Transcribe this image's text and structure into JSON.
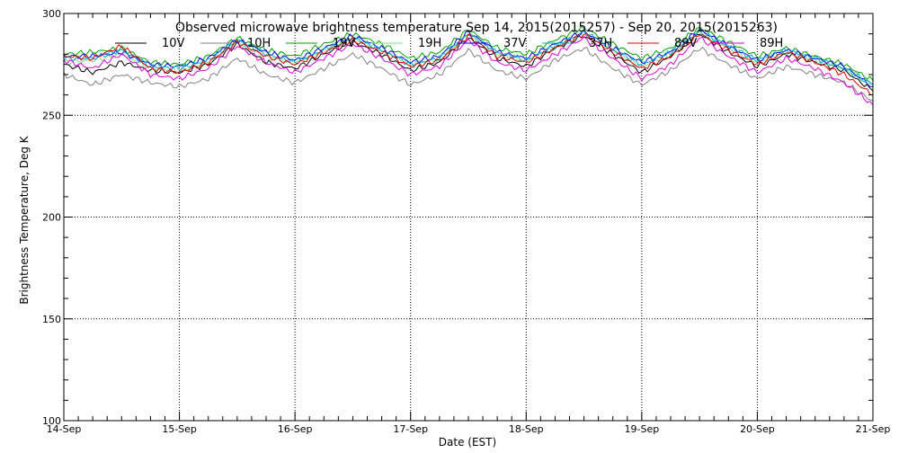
{
  "chart_data": {
    "type": "line",
    "title": "Observed microwave brightness temperature Sep 14, 2015(2015257) - Sep 20, 2015(2015263)",
    "xlabel": "Date (EST)",
    "ylabel": "Brightness Temperature, Deg K",
    "xlim": [
      0,
      7
    ],
    "ylim": [
      100,
      300
    ],
    "x_tick_labels": [
      "14-Sep",
      "15-Sep",
      "16-Sep",
      "17-Sep",
      "18-Sep",
      "19-Sep",
      "20-Sep",
      "21-Sep"
    ],
    "y_ticks": [
      100,
      150,
      200,
      250,
      300
    ],
    "y_tick_labels": [
      "100",
      "150",
      "200",
      "250",
      "300"
    ],
    "grid": "dotted, major ticks",
    "legend_position": "top, inside plot",
    "x": [
      0.0,
      0.25,
      0.5,
      0.75,
      1.0,
      1.25,
      1.5,
      1.75,
      2.0,
      2.25,
      2.5,
      2.75,
      3.0,
      3.25,
      3.5,
      3.75,
      4.0,
      4.25,
      4.5,
      4.75,
      5.0,
      5.25,
      5.5,
      5.75,
      6.0,
      6.25,
      6.5,
      6.75,
      7.0
    ],
    "series": [
      {
        "name": "10V",
        "color": "#000000",
        "values": [
          275,
          271,
          276,
          272,
          271,
          275,
          285,
          276,
          273,
          280,
          286,
          280,
          272,
          276,
          288,
          278,
          274,
          283,
          289,
          280,
          271,
          279,
          290,
          281,
          274,
          280,
          276,
          272,
          262
        ]
      },
      {
        "name": "10H",
        "color": "#808080",
        "values": [
          270,
          265,
          270,
          266,
          264,
          268,
          278,
          270,
          266,
          273,
          280,
          273,
          265,
          270,
          282,
          272,
          268,
          277,
          283,
          273,
          265,
          272,
          283,
          275,
          268,
          274,
          270,
          266,
          257
        ]
      },
      {
        "name": "19V",
        "color": "#00a000",
        "values": [
          280,
          281,
          283,
          276,
          275,
          279,
          288,
          282,
          279,
          285,
          290,
          285,
          278,
          281,
          292,
          283,
          280,
          287,
          293,
          285,
          278,
          283,
          293,
          286,
          279,
          283,
          279,
          275,
          267
        ]
      },
      {
        "name": "19H",
        "color": "#80e080",
        "values": [
          276,
          277,
          280,
          273,
          272,
          276,
          286,
          279,
          276,
          282,
          288,
          282,
          275,
          278,
          290,
          280,
          277,
          284,
          290,
          282,
          274,
          280,
          291,
          283,
          276,
          281,
          277,
          273,
          265
        ]
      },
      {
        "name": "37V",
        "color": "#0000ff",
        "values": [
          279,
          279,
          281,
          275,
          274,
          278,
          287,
          281,
          277,
          283,
          289,
          283,
          276,
          279,
          291,
          281,
          278,
          285,
          291,
          283,
          276,
          281,
          292,
          284,
          277,
          282,
          278,
          274,
          264
        ]
      },
      {
        "name": "37H",
        "color": "#00aacc",
        "values": [
          278,
          278,
          282,
          274,
          273,
          277,
          287,
          280,
          276,
          282,
          288,
          282,
          275,
          278,
          290,
          281,
          277,
          284,
          291,
          282,
          275,
          281,
          291,
          284,
          277,
          282,
          278,
          273,
          265
        ]
      },
      {
        "name": "89V",
        "color": "#e00000",
        "values": [
          279,
          278,
          284,
          273,
          271,
          276,
          286,
          279,
          275,
          281,
          287,
          281,
          274,
          277,
          289,
          279,
          276,
          283,
          290,
          281,
          273,
          279,
          290,
          282,
          275,
          281,
          276,
          270,
          260
        ]
      },
      {
        "name": "89H",
        "color": "#dd00dd",
        "values": [
          277,
          273,
          280,
          270,
          268,
          273,
          284,
          276,
          271,
          278,
          285,
          278,
          270,
          274,
          287,
          276,
          272,
          280,
          288,
          278,
          268,
          275,
          288,
          279,
          271,
          278,
          273,
          266,
          255
        ]
      }
    ]
  }
}
